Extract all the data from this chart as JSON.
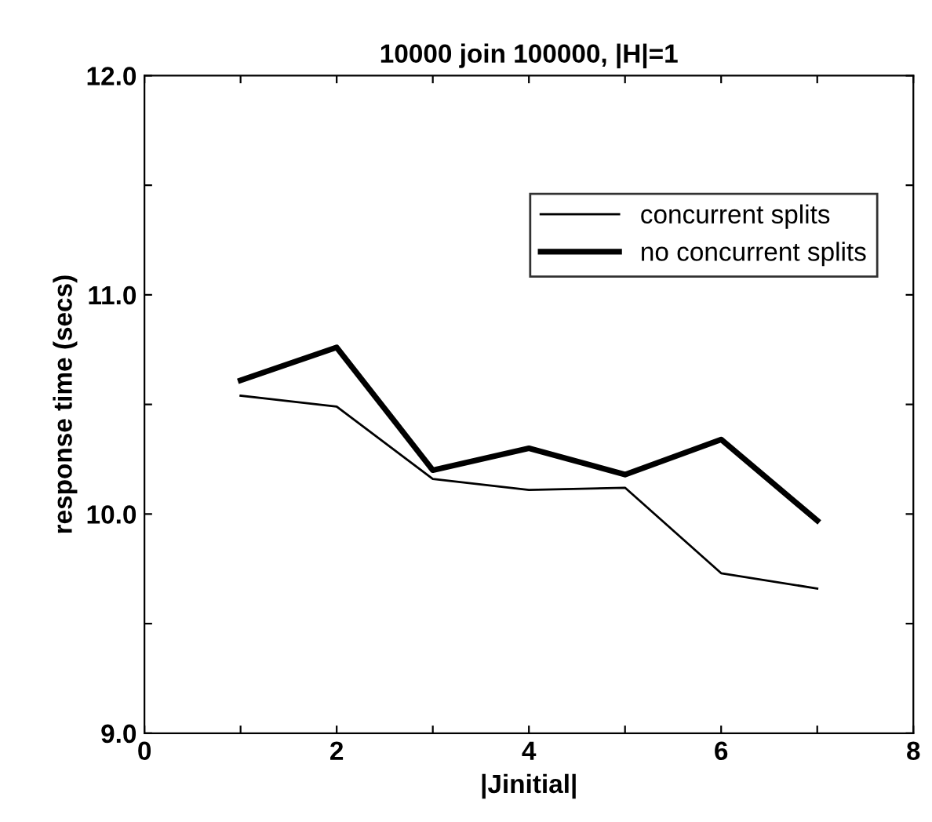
{
  "chart_data": {
    "type": "line",
    "title": "10000 join 100000, |H|=1",
    "xlabel": "|Jinitial|",
    "ylabel": "response time (secs)",
    "x": [
      1,
      2,
      3,
      4,
      5,
      6,
      7
    ],
    "series": [
      {
        "name": "concurrent splits",
        "color": "#000000",
        "values": [
          10.54,
          10.49,
          10.16,
          10.11,
          10.12,
          9.73,
          9.66
        ]
      },
      {
        "name": "no concurrent splits",
        "color": "#000000",
        "values": [
          10.61,
          10.76,
          10.2,
          10.3,
          10.18,
          10.34,
          9.97
        ]
      }
    ],
    "xlim": [
      0,
      8
    ],
    "xticks": [
      0,
      {
        "value": 1,
        "label": null
      },
      2,
      {
        "value": 3,
        "label": null
      },
      4,
      {
        "value": 5,
        "label": null
      },
      6,
      {
        "value": 7,
        "label": null
      },
      8
    ],
    "ylim": [
      9.0,
      12.0
    ],
    "yticks": [
      {
        "value": 9,
        "label": "9.0"
      },
      {
        "value": 9.5,
        "label": null
      },
      {
        "value": 10,
        "label": "10.0"
      },
      {
        "value": 10.5,
        "label": null
      },
      {
        "value": 11,
        "label": "11.0"
      },
      {
        "value": 11.5,
        "label": null
      },
      {
        "value": 12,
        "label": "12.0"
      }
    ],
    "grid": false,
    "legend": "top right",
    "marker": "none",
    "line_style": "solid"
  }
}
